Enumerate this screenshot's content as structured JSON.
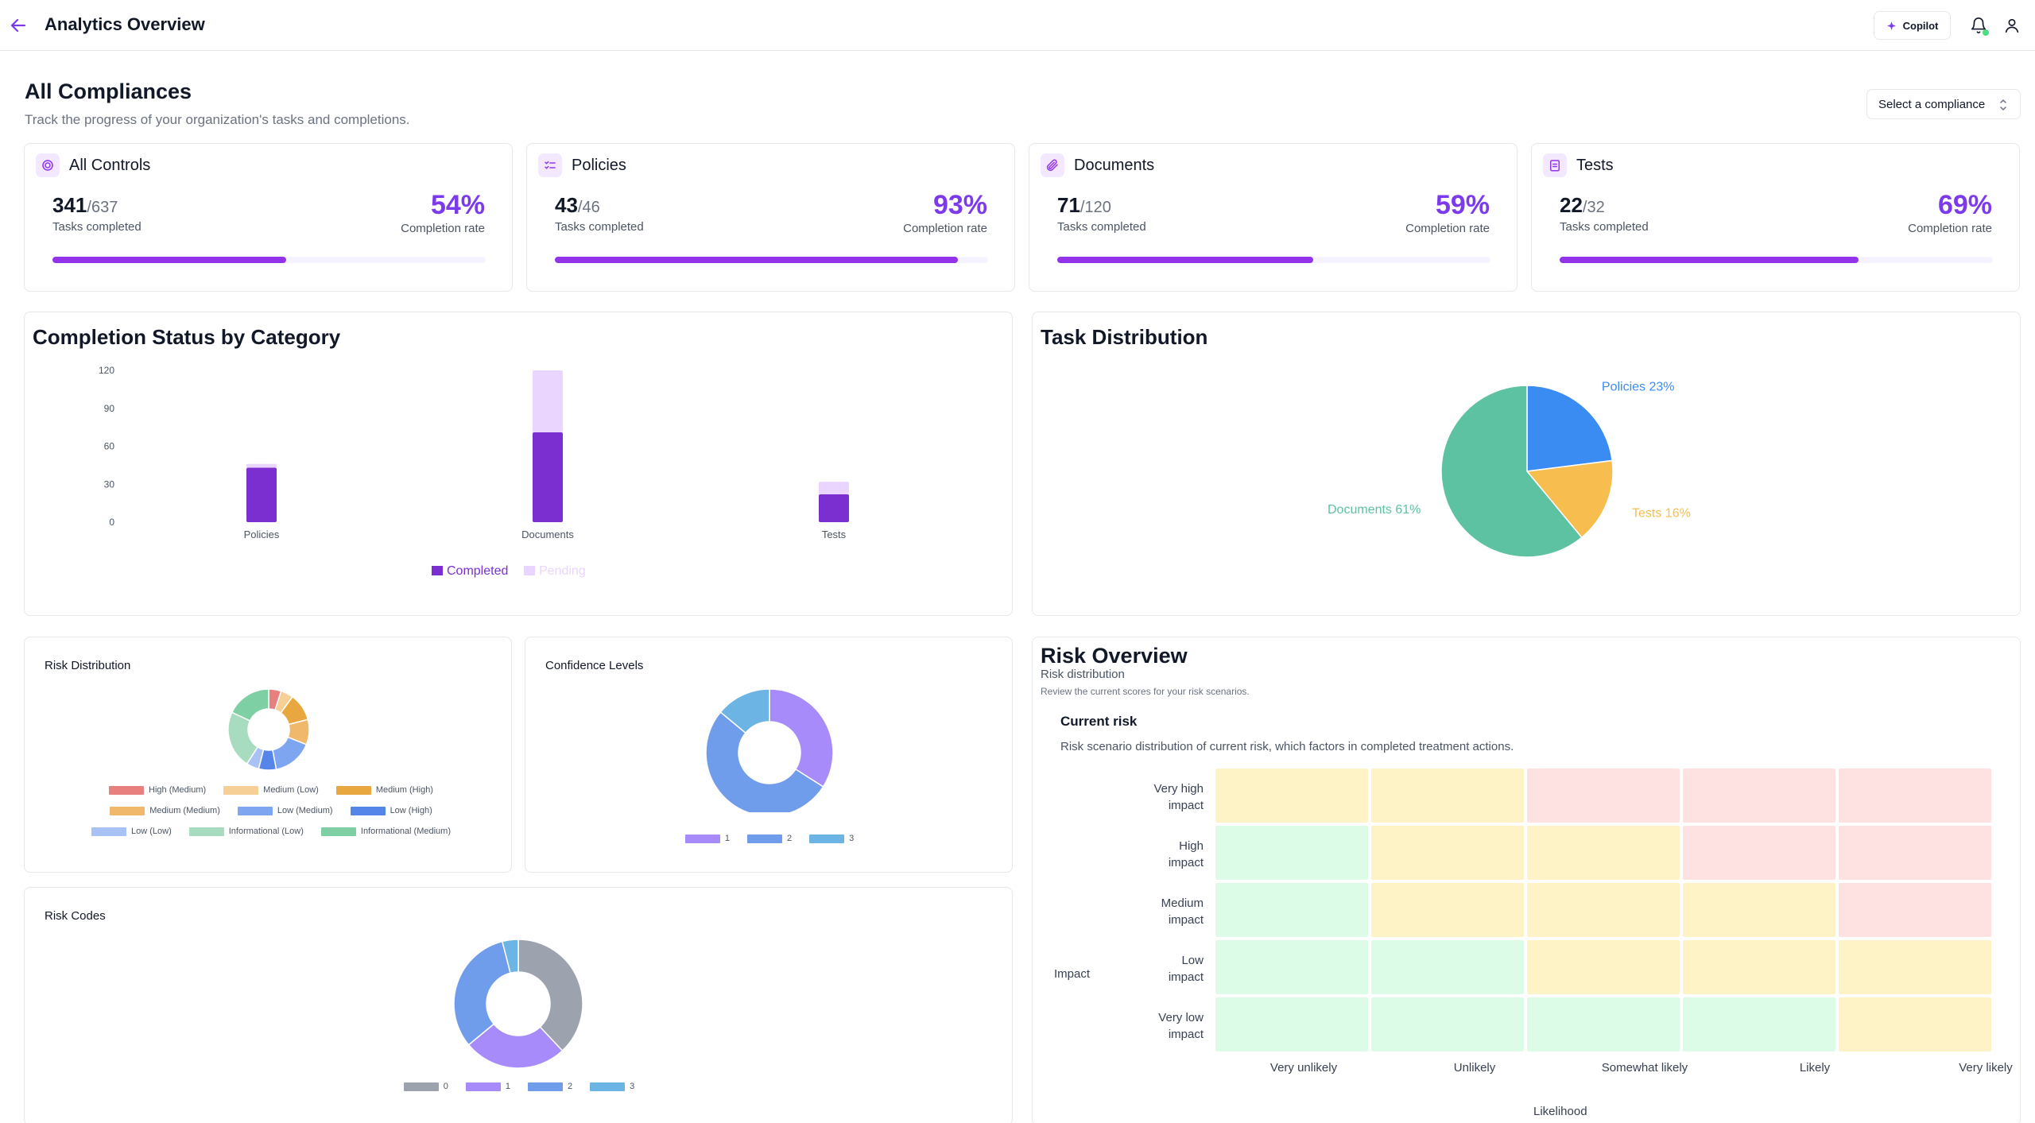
{
  "header": {
    "title": "Analytics Overview",
    "copilot_label": "Copilot"
  },
  "page": {
    "title": "All Compliances",
    "subtitle": "Track the progress of your organization's tasks and completions.",
    "select_placeholder": "Select a compliance"
  },
  "colors": {
    "accent": "#7c3aed",
    "progress": "#9333ea",
    "completed": "#7b2fd0",
    "pending": "#e9d5ff"
  },
  "stats": [
    {
      "label": "All Controls",
      "icon": "target-icon",
      "completed": "341",
      "total": "/637",
      "tasks_label": "Tasks completed",
      "pct": "54%",
      "rate_label": "Completion rate",
      "fraction": 0.54
    },
    {
      "label": "Policies",
      "icon": "checklist-icon",
      "completed": "43",
      "total": "/46",
      "tasks_label": "Tasks completed",
      "pct": "93%",
      "rate_label": "Completion rate",
      "fraction": 0.93
    },
    {
      "label": "Documents",
      "icon": "paperclip-icon",
      "completed": "71",
      "total": "/120",
      "tasks_label": "Tasks completed",
      "pct": "59%",
      "rate_label": "Completion rate",
      "fraction": 0.59
    },
    {
      "label": "Tests",
      "icon": "clipboard-icon",
      "completed": "22",
      "total": "/32",
      "tasks_label": "Tasks completed",
      "pct": "69%",
      "rate_label": "Completion rate",
      "fraction": 0.69
    }
  ],
  "completion_chart": {
    "title": "Completion Status by Category",
    "legend": [
      "Completed",
      "Pending"
    ]
  },
  "task_chart": {
    "title": "Task Distribution"
  },
  "risk_dist": {
    "title": "Risk Distribution",
    "legend": [
      {
        "label": "High (Medium)",
        "color": "#e88080"
      },
      {
        "label": "Medium (Low)",
        "color": "#f5cf96"
      },
      {
        "label": "Medium (High)",
        "color": "#e9a83f"
      },
      {
        "label": "Medium (Medium)",
        "color": "#f0b86a"
      },
      {
        "label": "Low (Medium)",
        "color": "#7ea6f0"
      },
      {
        "label": "Low (High)",
        "color": "#5585e8"
      },
      {
        "label": "Low (Low)",
        "color": "#a8c2f5"
      },
      {
        "label": "Informational (Low)",
        "color": "#a7dcc0"
      },
      {
        "label": "Informational (Medium)",
        "color": "#7fcfa5"
      }
    ]
  },
  "confidence": {
    "title": "Confidence Levels",
    "legend": [
      {
        "label": "1",
        "color": "#a78bfa"
      },
      {
        "label": "2",
        "color": "#6f9ceb"
      },
      {
        "label": "3",
        "color": "#6cb4e4"
      }
    ]
  },
  "risk_codes": {
    "title": "Risk Codes",
    "legend": [
      {
        "label": "0",
        "color": "#9ca3af"
      },
      {
        "label": "1",
        "color": "#a78bfa"
      },
      {
        "label": "2",
        "color": "#6f9ceb"
      },
      {
        "label": "3",
        "color": "#6cb4e4"
      }
    ]
  },
  "risk_overview": {
    "title": "Risk Overview",
    "subtitle": "Risk distribution",
    "description": "Review the current scores for your risk scenarios.",
    "current_title": "Current risk",
    "current_description": "Risk scenario distribution of current risk, which factors in completed treatment actions.",
    "impact_axis": "Impact",
    "likelihood_axis": "Likelihood",
    "impact_levels": [
      {
        "line1": "Very high",
        "line2": "impact"
      },
      {
        "line1": "High",
        "line2": "impact"
      },
      {
        "line1": "Medium",
        "line2": "impact"
      },
      {
        "line1": "Low",
        "line2": "impact"
      },
      {
        "line1": "Very low",
        "line2": "impact"
      }
    ],
    "likelihood_levels": [
      "Very unlikely",
      "Unlikely",
      "Somewhat likely",
      "Likely",
      "Very likely"
    ],
    "cell_colors": {
      "low": "#dcfce7",
      "medium": "#fef3c7",
      "high": "#fee2e2"
    },
    "matrix": [
      [
        "medium",
        "medium",
        "high",
        "high",
        "high"
      ],
      [
        "low",
        "medium",
        "medium",
        "high",
        "high"
      ],
      [
        "low",
        "medium",
        "medium",
        "medium",
        "high"
      ],
      [
        "low",
        "low",
        "medium",
        "medium",
        "medium"
      ],
      [
        "low",
        "low",
        "low",
        "low",
        "medium"
      ]
    ]
  },
  "chart_data": [
    {
      "type": "bar",
      "title": "Completion Status by Category",
      "categories": [
        "Policies",
        "Documents",
        "Tests"
      ],
      "series": [
        {
          "name": "Completed",
          "values": [
            43,
            71,
            22
          ]
        },
        {
          "name": "Pending",
          "values": [
            3,
            49,
            10
          ]
        }
      ],
      "stacked": true,
      "ylim": [
        0,
        120
      ],
      "yticks": [
        0,
        30,
        60,
        90,
        120
      ],
      "legend": "bottom"
    },
    {
      "type": "pie",
      "title": "Task Distribution",
      "labels": [
        "Policies",
        "Tests",
        "Documents"
      ],
      "values": [
        23,
        16,
        61
      ],
      "display_labels": [
        "Policies 23%",
        "Tests 16%",
        "Documents 61%"
      ],
      "colors": [
        "#3b8cf2",
        "#f7bd4f",
        "#5cc2a2"
      ]
    },
    {
      "type": "pie",
      "title": "Risk Distribution",
      "donut": true,
      "labels": [
        "High (Medium)",
        "Medium (Low)",
        "Medium (High)",
        "Medium (Medium)",
        "Low (Medium)",
        "Low (High)",
        "Low (Low)",
        "Informational (Low)",
        "Informational (Medium)"
      ],
      "values": [
        5,
        5,
        11,
        10,
        16,
        7,
        5,
        23,
        18
      ],
      "colors": [
        "#e88080",
        "#f5cf96",
        "#e9a83f",
        "#f0b86a",
        "#7ea6f0",
        "#5585e8",
        "#a8c2f5",
        "#a7dcc0",
        "#7fcfa5"
      ],
      "legend": "bottom"
    },
    {
      "type": "pie",
      "title": "Confidence Levels",
      "donut": true,
      "labels": [
        "1",
        "2",
        "3"
      ],
      "values": [
        34,
        52,
        14
      ],
      "colors": [
        "#a78bfa",
        "#6f9ceb",
        "#6cb4e4"
      ],
      "legend": "bottom"
    },
    {
      "type": "pie",
      "title": "Risk Codes",
      "donut": true,
      "labels": [
        "0",
        "1",
        "2",
        "3"
      ],
      "values": [
        38,
        26,
        32,
        4
      ],
      "colors": [
        "#9ca3af",
        "#a78bfa",
        "#6f9ceb",
        "#6cb4e4"
      ],
      "legend": "bottom"
    }
  ]
}
